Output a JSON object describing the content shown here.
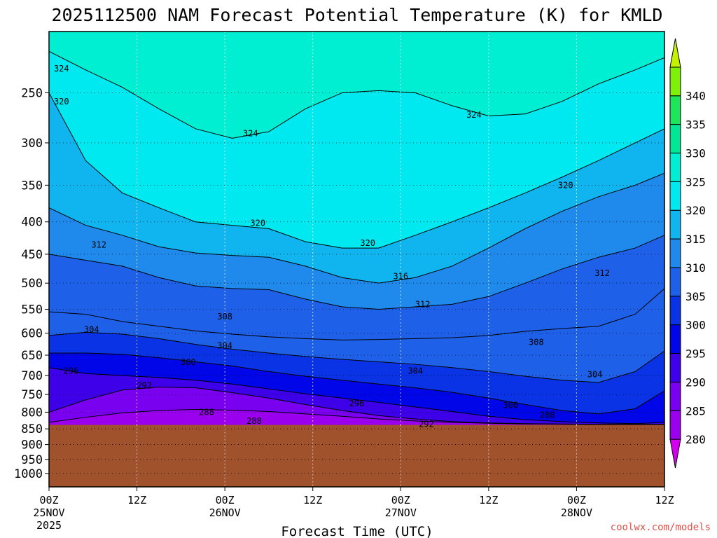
{
  "chart_data": {
    "type": "heatmap",
    "title": "2025112500 NAM Forecast Potential Temperature (K) for KMLD",
    "xlabel": "Forecast Time (UTC)",
    "ylabel": "",
    "credit": "coolwx.com/models",
    "y_scale": "log-pressure",
    "ylim_hpa": [
      1050,
      200
    ],
    "y_ticks": [
      250,
      300,
      350,
      400,
      450,
      500,
      550,
      600,
      650,
      700,
      750,
      800,
      850,
      900,
      950,
      1000
    ],
    "x_range_hours": [
      0,
      84
    ],
    "x_ticks": [
      {
        "hour": 0,
        "line1": "00Z",
        "line2": "25NOV",
        "line3": "2025"
      },
      {
        "hour": 12,
        "line1": "12Z",
        "line2": "",
        "line3": ""
      },
      {
        "hour": 24,
        "line1": "00Z",
        "line2": "26NOV",
        "line3": ""
      },
      {
        "hour": 36,
        "line1": "12Z",
        "line2": "",
        "line3": ""
      },
      {
        "hour": 48,
        "line1": "00Z",
        "line2": "27NOV",
        "line3": ""
      },
      {
        "hour": 60,
        "line1": "12Z",
        "line2": "",
        "line3": ""
      },
      {
        "hour": 72,
        "line1": "00Z",
        "line2": "28NOV",
        "line3": ""
      },
      {
        "hour": 84,
        "line1": "12Z",
        "line2": "",
        "line3": ""
      }
    ],
    "colorbar": {
      "levels": [
        280,
        285,
        290,
        295,
        300,
        305,
        310,
        315,
        320,
        325,
        330,
        335,
        340
      ],
      "colors": [
        "#d300f0",
        "#9a00ee",
        "#7a00f0",
        "#3d00e8",
        "#0006e8",
        "#0a33e6",
        "#1e60e8",
        "#1f8aec",
        "#10b5f0",
        "#00e8f0",
        "#00eed2",
        "#00e896",
        "#1de65a",
        "#7ef00a",
        "#c4f200"
      ]
    },
    "terrain_below_hpa": 838,
    "terrain_color": "#a0522d",
    "grid": true,
    "isentropes": [
      {
        "theta": 288,
        "p": [
          830,
          815,
          802,
          795,
          792,
          794,
          798,
          805,
          812,
          820,
          826,
          830,
          833,
          835,
          836,
          837,
          837,
          837
        ]
      },
      {
        "theta": 292,
        "p": [
          800,
          765,
          738,
          730,
          732,
          745,
          760,
          778,
          795,
          810,
          820,
          828,
          832,
          834,
          835,
          836,
          836,
          836
        ]
      },
      {
        "theta": 296,
        "p": [
          680,
          695,
          700,
          705,
          712,
          722,
          735,
          748,
          760,
          772,
          785,
          798,
          812,
          822,
          828,
          832,
          834,
          830
        ]
      },
      {
        "theta": 300,
        "p": [
          645,
          645,
          648,
          656,
          666,
          676,
          690,
          702,
          712,
          722,
          732,
          744,
          760,
          778,
          795,
          805,
          790,
          740
        ]
      },
      {
        "theta": 304,
        "p": [
          605,
          598,
          602,
          612,
          625,
          636,
          645,
          653,
          660,
          666,
          672,
          680,
          690,
          702,
          712,
          718,
          690,
          640
        ]
      },
      {
        "theta": 308,
        "p": [
          555,
          560,
          575,
          585,
          595,
          602,
          608,
          612,
          615,
          614,
          612,
          610,
          605,
          596,
          590,
          585,
          560,
          510
        ]
      },
      {
        "theta": 312,
        "p": [
          450,
          460,
          470,
          490,
          505,
          510,
          512,
          530,
          545,
          550,
          545,
          540,
          525,
          500,
          475,
          455,
          440,
          420
        ]
      },
      {
        "theta": 316,
        "p": [
          380,
          405,
          420,
          438,
          448,
          452,
          455,
          470,
          490,
          500,
          490,
          470,
          440,
          410,
          385,
          365,
          350,
          335
        ]
      },
      {
        "theta": 320,
        "p": [
          250,
          320,
          360,
          380,
          400,
          405,
          410,
          430,
          440,
          440,
          420,
          400,
          380,
          360,
          340,
          320,
          300,
          285
        ]
      },
      {
        "theta": 324,
        "p": [
          215,
          230,
          245,
          265,
          285,
          295,
          288,
          265,
          250,
          248,
          250,
          262,
          272,
          270,
          258,
          242,
          230,
          220
        ]
      }
    ],
    "isentrope_hours": [
      0,
      5,
      10,
      15,
      20,
      25,
      30,
      35,
      40,
      45,
      50,
      55,
      60,
      65,
      70,
      75,
      80,
      84
    ],
    "contour_labels": [
      {
        "text": "324",
        "hour": 1.7,
        "p": 229
      },
      {
        "text": "320",
        "hour": 1.7,
        "p": 258
      },
      {
        "text": "324",
        "hour": 27.5,
        "p": 290
      },
      {
        "text": "324",
        "hour": 58.0,
        "p": 271
      },
      {
        "text": "320",
        "hour": 28.5,
        "p": 402
      },
      {
        "text": "320",
        "hour": 43.5,
        "p": 432
      },
      {
        "text": "320",
        "hour": 70.5,
        "p": 350
      },
      {
        "text": "312",
        "hour": 6.8,
        "p": 435
      },
      {
        "text": "316",
        "hour": 48.0,
        "p": 488
      },
      {
        "text": "312",
        "hour": 51.0,
        "p": 540
      },
      {
        "text": "312",
        "hour": 75.5,
        "p": 482
      },
      {
        "text": "308",
        "hour": 24.0,
        "p": 565
      },
      {
        "text": "308",
        "hour": 66.5,
        "p": 620
      },
      {
        "text": "304",
        "hour": 5.8,
        "p": 592
      },
      {
        "text": "304",
        "hour": 24.0,
        "p": 628
      },
      {
        "text": "304",
        "hour": 50.0,
        "p": 688
      },
      {
        "text": "304",
        "hour": 74.5,
        "p": 697
      },
      {
        "text": "300",
        "hour": 19.0,
        "p": 667
      },
      {
        "text": "300",
        "hour": 63.0,
        "p": 780
      },
      {
        "text": "296",
        "hour": 3.0,
        "p": 688
      },
      {
        "text": "296",
        "hour": 42.0,
        "p": 775
      },
      {
        "text": "292",
        "hour": 13.0,
        "p": 726
      },
      {
        "text": "292",
        "hour": 51.5,
        "p": 836
      },
      {
        "text": "288",
        "hour": 21.5,
        "p": 800
      },
      {
        "text": "288",
        "hour": 28.0,
        "p": 826
      },
      {
        "text": "288",
        "hour": 68.0,
        "p": 808
      }
    ]
  }
}
